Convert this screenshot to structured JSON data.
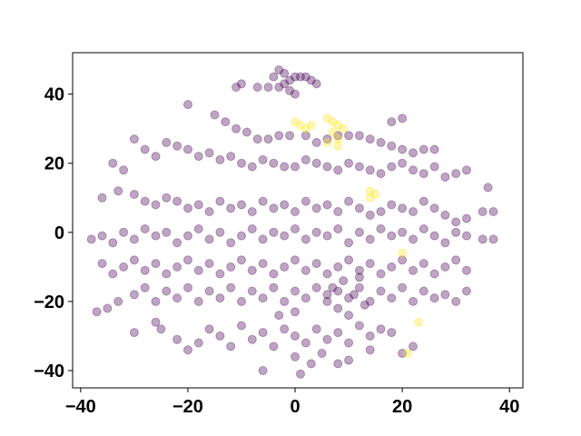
{
  "chart_data": {
    "type": "scatter",
    "title": "",
    "xlabel": "",
    "ylabel": "",
    "xlim": [
      -41.5,
      42.5
    ],
    "ylim": [
      -45,
      52
    ],
    "x_ticks": [
      -40,
      -20,
      0,
      20,
      40
    ],
    "y_ticks": [
      -40,
      -20,
      0,
      20,
      40
    ],
    "x_tick_labels": [
      "−40",
      "−20",
      "0",
      "20",
      "40"
    ],
    "y_tick_labels": [
      "−40",
      "−20",
      "0",
      "20",
      "40"
    ],
    "grid": false,
    "legend": "none",
    "marker_alpha": 0.35,
    "colors": {
      "class_0": "#440154",
      "class_1": "#fde725"
    },
    "series": [
      {
        "class": 0,
        "color": "#440154",
        "points": [
          [
            -3,
            47
          ],
          [
            -2,
            46
          ],
          [
            -4,
            45
          ],
          [
            -1,
            44
          ],
          [
            0,
            45
          ],
          [
            1,
            45
          ],
          [
            2,
            45
          ],
          [
            3,
            44
          ],
          [
            4,
            43
          ],
          [
            -2,
            43
          ],
          [
            -5,
            42
          ],
          [
            -7,
            42
          ],
          [
            -10,
            43
          ],
          [
            -11,
            42
          ],
          [
            -3,
            42
          ],
          [
            -1,
            41
          ],
          [
            0,
            40
          ],
          [
            -20,
            37
          ],
          [
            -15,
            34
          ],
          [
            -13,
            32
          ],
          [
            -11,
            30
          ],
          [
            -9,
            29
          ],
          [
            -7,
            27
          ],
          [
            -5,
            27
          ],
          [
            -3,
            28
          ],
          [
            -1,
            28
          ],
          [
            2,
            28
          ],
          [
            4,
            26
          ],
          [
            6,
            27
          ],
          [
            8,
            28
          ],
          [
            10,
            28
          ],
          [
            12,
            28
          ],
          [
            14,
            27
          ],
          [
            16,
            26
          ],
          [
            18,
            25
          ],
          [
            20,
            24
          ],
          [
            22,
            23
          ],
          [
            24,
            24
          ],
          [
            26,
            24
          ],
          [
            18,
            32
          ],
          [
            20,
            33
          ],
          [
            -34,
            20
          ],
          [
            -32,
            18
          ],
          [
            -30,
            27
          ],
          [
            -28,
            24
          ],
          [
            -26,
            22
          ],
          [
            -24,
            26
          ],
          [
            -22,
            25
          ],
          [
            -20,
            24
          ],
          [
            -18,
            22
          ],
          [
            -16,
            23
          ],
          [
            -14,
            21
          ],
          [
            -12,
            22
          ],
          [
            -10,
            20
          ],
          [
            -8,
            19
          ],
          [
            -6,
            21
          ],
          [
            -4,
            20
          ],
          [
            -2,
            19
          ],
          [
            0,
            19
          ],
          [
            2,
            21
          ],
          [
            4,
            20
          ],
          [
            6,
            19
          ],
          [
            8,
            18
          ],
          [
            10,
            20
          ],
          [
            12,
            19
          ],
          [
            14,
            18
          ],
          [
            16,
            17
          ],
          [
            18,
            19
          ],
          [
            20,
            20
          ],
          [
            22,
            18
          ],
          [
            24,
            17
          ],
          [
            26,
            19
          ],
          [
            28,
            16
          ],
          [
            30,
            17
          ],
          [
            32,
            18
          ],
          [
            36,
            13
          ],
          [
            -36,
            10
          ],
          [
            -33,
            12
          ],
          [
            -30,
            11
          ],
          [
            -28,
            9
          ],
          [
            -26,
            8
          ],
          [
            -24,
            10
          ],
          [
            -22,
            9
          ],
          [
            -20,
            7
          ],
          [
            -18,
            8
          ],
          [
            -16,
            6
          ],
          [
            -14,
            9
          ],
          [
            -12,
            7
          ],
          [
            -10,
            8
          ],
          [
            -8,
            6
          ],
          [
            -6,
            9
          ],
          [
            -4,
            7
          ],
          [
            -2,
            8
          ],
          [
            0,
            6
          ],
          [
            2,
            9
          ],
          [
            4,
            7
          ],
          [
            6,
            8
          ],
          [
            8,
            6
          ],
          [
            10,
            9
          ],
          [
            12,
            7
          ],
          [
            14,
            5
          ],
          [
            16,
            6
          ],
          [
            18,
            8
          ],
          [
            20,
            7
          ],
          [
            22,
            6
          ],
          [
            24,
            9
          ],
          [
            26,
            7
          ],
          [
            28,
            5
          ],
          [
            30,
            3
          ],
          [
            32,
            4
          ],
          [
            35,
            6
          ],
          [
            37,
            6
          ],
          [
            -38,
            -2
          ],
          [
            -36,
            -1
          ],
          [
            -34,
            -3
          ],
          [
            -32,
            0
          ],
          [
            -30,
            -2
          ],
          [
            -28,
            1
          ],
          [
            -26,
            -1
          ],
          [
            -24,
            0
          ],
          [
            -22,
            -3
          ],
          [
            -20,
            -1
          ],
          [
            -18,
            1
          ],
          [
            -16,
            -2
          ],
          [
            -14,
            0
          ],
          [
            -12,
            -3
          ],
          [
            -10,
            -1
          ],
          [
            -8,
            1
          ],
          [
            -6,
            -2
          ],
          [
            -4,
            0
          ],
          [
            -2,
            -1
          ],
          [
            0,
            1
          ],
          [
            2,
            -2
          ],
          [
            4,
            0
          ],
          [
            6,
            -1
          ],
          [
            8,
            1
          ],
          [
            10,
            -3
          ],
          [
            12,
            0
          ],
          [
            14,
            -2
          ],
          [
            16,
            1
          ],
          [
            18,
            -1
          ],
          [
            20,
            0
          ],
          [
            22,
            -2
          ],
          [
            24,
            1
          ],
          [
            26,
            -1
          ],
          [
            28,
            -3
          ],
          [
            30,
            0
          ],
          [
            32,
            -1
          ],
          [
            35,
            -2
          ],
          [
            37,
            -2
          ],
          [
            -36,
            -9
          ],
          [
            -34,
            -12
          ],
          [
            -32,
            -10
          ],
          [
            -30,
            -8
          ],
          [
            -28,
            -11
          ],
          [
            -26,
            -9
          ],
          [
            -24,
            -12
          ],
          [
            -22,
            -10
          ],
          [
            -20,
            -8
          ],
          [
            -18,
            -11
          ],
          [
            -16,
            -9
          ],
          [
            -14,
            -12
          ],
          [
            -12,
            -10
          ],
          [
            -10,
            -8
          ],
          [
            -8,
            -11
          ],
          [
            -6,
            -9
          ],
          [
            -4,
            -12
          ],
          [
            -2,
            -10
          ],
          [
            0,
            -8
          ],
          [
            2,
            -11
          ],
          [
            4,
            -9
          ],
          [
            6,
            -12
          ],
          [
            8,
            -10
          ],
          [
            10,
            -8
          ],
          [
            12,
            -11
          ],
          [
            14,
            -9
          ],
          [
            16,
            -12
          ],
          [
            18,
            -10
          ],
          [
            20,
            -8
          ],
          [
            22,
            -11
          ],
          [
            24,
            -9
          ],
          [
            26,
            -12
          ],
          [
            28,
            -10
          ],
          [
            30,
            -8
          ],
          [
            32,
            -11
          ],
          [
            -37,
            -23
          ],
          [
            -35,
            -22
          ],
          [
            -33,
            -20
          ],
          [
            -30,
            -18
          ],
          [
            -28,
            -16
          ],
          [
            -26,
            -20
          ],
          [
            -24,
            -17
          ],
          [
            -22,
            -19
          ],
          [
            -20,
            -16
          ],
          [
            -18,
            -20
          ],
          [
            -16,
            -17
          ],
          [
            -14,
            -19
          ],
          [
            -12,
            -16
          ],
          [
            -10,
            -20
          ],
          [
            -8,
            -17
          ],
          [
            -6,
            -19
          ],
          [
            -4,
            -16
          ],
          [
            -2,
            -20
          ],
          [
            0,
            -17
          ],
          [
            2,
            -19
          ],
          [
            4,
            -16
          ],
          [
            6,
            -18
          ],
          [
            8,
            -17
          ],
          [
            10,
            -19
          ],
          [
            12,
            -16
          ],
          [
            14,
            -20
          ],
          [
            16,
            -17
          ],
          [
            18,
            -19
          ],
          [
            20,
            -16
          ],
          [
            22,
            -20
          ],
          [
            24,
            -17
          ],
          [
            26,
            -19
          ],
          [
            28,
            -18
          ],
          [
            30,
            -20
          ],
          [
            32,
            -17
          ],
          [
            -30,
            -29
          ],
          [
            -22,
            -31
          ],
          [
            -20,
            -34
          ],
          [
            -18,
            -32
          ],
          [
            -16,
            -28
          ],
          [
            -14,
            -30
          ],
          [
            -12,
            -33
          ],
          [
            -10,
            -27
          ],
          [
            -8,
            -31
          ],
          [
            -6,
            -29
          ],
          [
            -4,
            -33
          ],
          [
            -2,
            -28
          ],
          [
            0,
            -30
          ],
          [
            2,
            -32
          ],
          [
            4,
            -28
          ],
          [
            6,
            -31
          ],
          [
            8,
            -29
          ],
          [
            10,
            -32
          ],
          [
            12,
            -27
          ],
          [
            14,
            -30
          ],
          [
            16,
            -28
          ],
          [
            18,
            -29
          ],
          [
            20,
            -35
          ],
          [
            22,
            -33
          ],
          [
            -6,
            -40
          ],
          [
            0,
            -36
          ],
          [
            1,
            -41
          ],
          [
            3,
            -38
          ],
          [
            5,
            -35
          ],
          [
            8,
            -38
          ],
          [
            10,
            -37
          ],
          [
            14,
            -34
          ],
          [
            -26,
            -26
          ],
          [
            -25,
            -28
          ],
          [
            -3,
            -24
          ],
          [
            0,
            -23
          ],
          [
            6,
            -20
          ],
          [
            7,
            -16
          ],
          [
            8,
            -22
          ],
          [
            9,
            -14
          ],
          [
            10,
            -24
          ],
          [
            11,
            -18
          ],
          [
            12,
            -13
          ],
          [
            13,
            -21
          ]
        ]
      },
      {
        "class": 1,
        "color": "#fde725",
        "points": [
          [
            0,
            32
          ],
          [
            1,
            31
          ],
          [
            2,
            30
          ],
          [
            3,
            31
          ],
          [
            6,
            33
          ],
          [
            7,
            32
          ],
          [
            8,
            31
          ],
          [
            9,
            30
          ],
          [
            7,
            29
          ],
          [
            8,
            27
          ],
          [
            6,
            26
          ],
          [
            8,
            25
          ],
          [
            14,
            12
          ],
          [
            15,
            11
          ],
          [
            14,
            10
          ],
          [
            20,
            -6
          ],
          [
            23,
            -26
          ],
          [
            21,
            -35
          ]
        ]
      }
    ]
  }
}
